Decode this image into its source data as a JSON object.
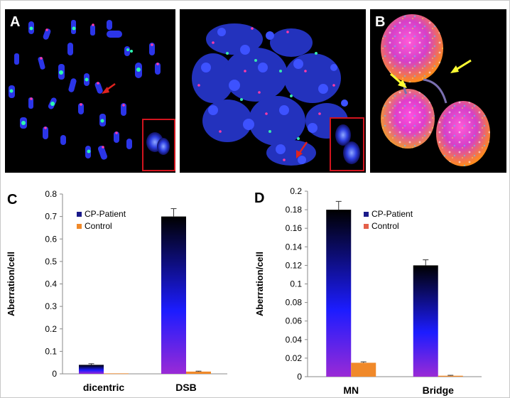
{
  "panels": {
    "a_label": "A",
    "b_label": "B",
    "c_label": "C",
    "d_label": "D"
  },
  "colors": {
    "patient_top": "#000000",
    "patient_mid": "#1c1cff",
    "patient_bottom": "#9a2ad6",
    "control_c": "#f0892a",
    "control_d_legend": "#e4604a",
    "arrow_red": "#e0231f",
    "arrow_yellow": "#ffff33",
    "inset_border": "#d2141e"
  },
  "icons": {
    "arrows_a": "red-arrow-icon",
    "arrows_b": "yellow-arrow-icon"
  },
  "chart_data": [
    {
      "panel": "C",
      "type": "bar",
      "categories": [
        "dicentric",
        "DSB"
      ],
      "series": [
        {
          "name": "CP-Patient",
          "values": [
            0.04,
            0.7
          ],
          "errors": [
            0.005,
            0.035
          ]
        },
        {
          "name": "Control",
          "values": [
            0.002,
            0.01
          ],
          "errors": [
            0.0,
            0.002
          ]
        }
      ],
      "xlabel": "",
      "ylabel": "Aberration/cell",
      "ylim": [
        0,
        0.8
      ],
      "yticks": [
        "0",
        "0.1",
        "0.2",
        "0.3",
        "0.4",
        "0.5",
        "0.6",
        "0.7",
        "0.8"
      ],
      "legend_position": "top-left",
      "grid": false
    },
    {
      "panel": "D",
      "type": "bar",
      "categories": [
        "MN",
        "Bridge"
      ],
      "series": [
        {
          "name": "CP-Patient",
          "values": [
            0.18,
            0.12
          ],
          "errors": [
            0.009,
            0.006
          ]
        },
        {
          "name": "Control",
          "values": [
            0.015,
            0.001
          ],
          "errors": [
            0.001,
            0.0005
          ]
        }
      ],
      "xlabel": "",
      "ylabel": "Aberration/cell",
      "ylim": [
        0,
        0.2
      ],
      "yticks": [
        "0",
        "0.02",
        "0.04",
        "0.06",
        "0.08",
        "0.1",
        "0.12",
        "0.14",
        "0.16",
        "0.18",
        "0.2"
      ],
      "legend_position": "top-right",
      "grid": false
    }
  ]
}
